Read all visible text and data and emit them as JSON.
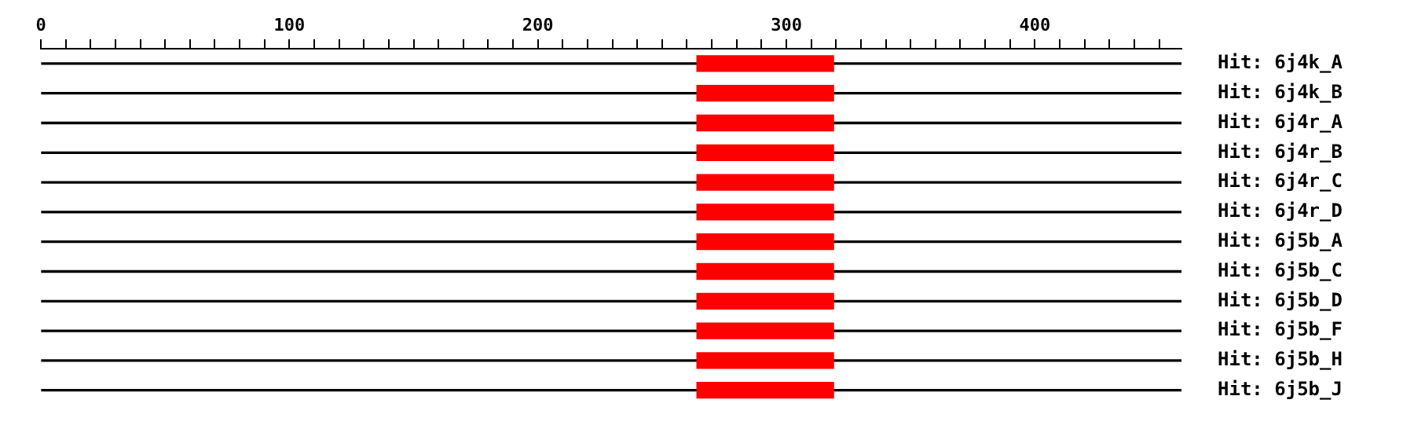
{
  "chart_data": {
    "type": "bar",
    "orientation": "horizontal",
    "categories": [
      "Hit: 6j4k_A",
      "Hit: 6j4k_B",
      "Hit: 6j4r_A",
      "Hit: 6j4r_B",
      "Hit: 6j4r_C",
      "Hit: 6j4r_D",
      "Hit: 6j5b_A",
      "Hit: 6j5b_C",
      "Hit: 6j5b_D",
      "Hit: 6j5b_F",
      "Hit: 6j5b_H",
      "Hit: 6j5b_J"
    ],
    "xlim": [
      0,
      459
    ],
    "xticks": [
      0,
      {
        "value": 10,
        "label": null
      },
      {
        "value": 20,
        "label": null
      },
      {
        "value": 30,
        "label": null
      },
      {
        "value": 40,
        "label": null
      },
      {
        "value": 50,
        "label": null
      },
      {
        "value": 60,
        "label": null
      },
      {
        "value": 70,
        "label": null
      },
      {
        "value": 80,
        "label": null
      },
      {
        "value": 90,
        "label": null
      },
      100,
      {
        "value": 110,
        "label": null
      },
      {
        "value": 120,
        "label": null
      },
      {
        "value": 130,
        "label": null
      },
      {
        "value": 140,
        "label": null
      },
      {
        "value": 150,
        "label": null
      },
      {
        "value": 160,
        "label": null
      },
      {
        "value": 170,
        "label": null
      },
      {
        "value": 180,
        "label": null
      },
      {
        "value": 190,
        "label": null
      },
      200,
      {
        "value": 210,
        "label": null
      },
      {
        "value": 220,
        "label": null
      },
      {
        "value": 230,
        "label": null
      },
      {
        "value": 240,
        "label": null
      },
      {
        "value": 250,
        "label": null
      },
      {
        "value": 260,
        "label": null
      },
      {
        "value": 270,
        "label": null
      },
      {
        "value": 280,
        "label": null
      },
      {
        "value": 290,
        "label": null
      },
      300,
      {
        "value": 310,
        "label": null
      },
      {
        "value": 320,
        "label": null
      },
      {
        "value": 330,
        "label": null
      },
      {
        "value": 340,
        "label": null
      },
      {
        "value": 350,
        "label": null
      },
      {
        "value": 360,
        "label": null
      },
      {
        "value": 370,
        "label": null
      },
      {
        "value": 380,
        "label": null
      },
      {
        "value": 390,
        "label": null
      },
      400,
      {
        "value": 410,
        "label": null
      },
      {
        "value": 420,
        "label": null
      },
      {
        "value": 430,
        "label": null
      },
      {
        "value": 440,
        "label": null
      },
      {
        "value": 450,
        "label": null
      }
    ],
    "series": [
      {
        "color": "#000000",
        "base": [
          0,
          0,
          0,
          0,
          0,
          0,
          0,
          0,
          0,
          0,
          0,
          0
        ],
        "values": [
          459,
          459,
          459,
          459,
          459,
          459,
          459,
          459,
          459,
          459,
          459,
          459
        ]
      },
      {
        "color": "#ff0000",
        "base": [
          264,
          264,
          264,
          264,
          264,
          264,
          264,
          264,
          264,
          264,
          264,
          264
        ],
        "values": [
          55,
          55,
          55,
          55,
          55,
          55,
          55,
          55,
          55,
          55,
          55,
          55
        ]
      }
    ],
    "grid": false,
    "legend": false
  }
}
